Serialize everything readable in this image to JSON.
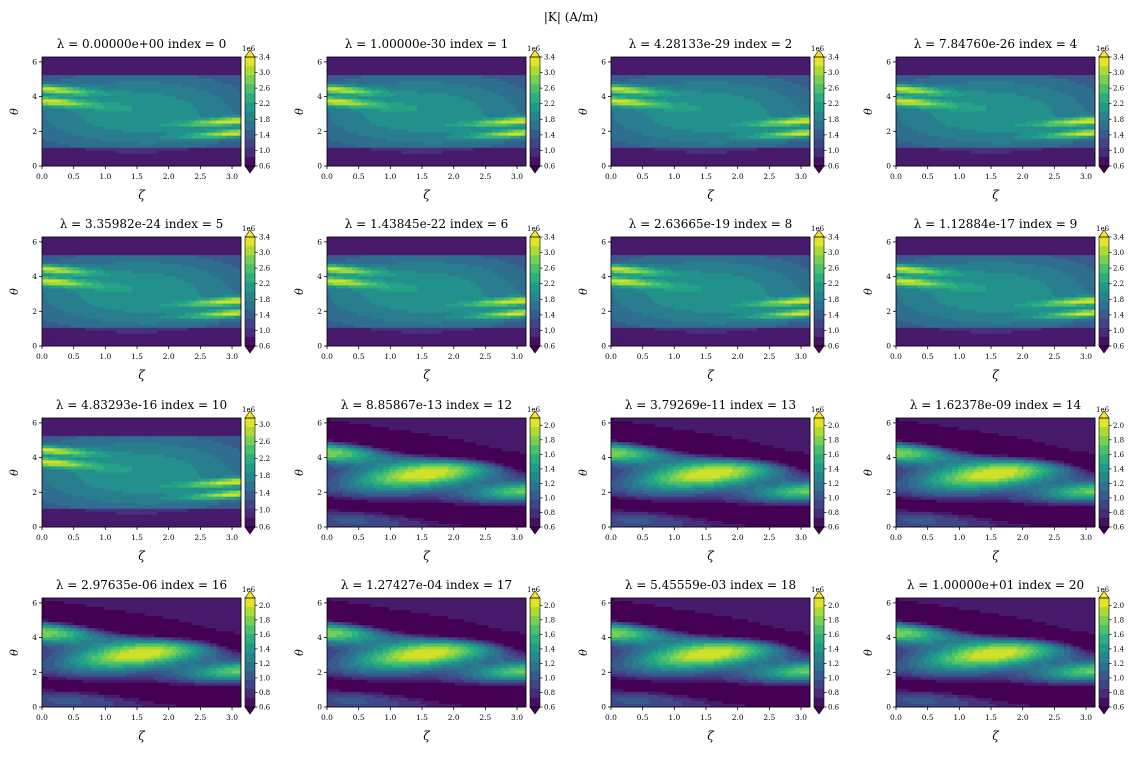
{
  "figure": {
    "title": "|K| (A/m)"
  },
  "colormap": {
    "name": "viridis",
    "stops": [
      "#440154",
      "#482878",
      "#3e4989",
      "#31688e",
      "#26828e",
      "#1f9e89",
      "#35b779",
      "#6ece58",
      "#b5de2b",
      "#fde725"
    ]
  },
  "chart_data": {
    "type": "heatmap",
    "shared": {
      "xlabel": "ζ",
      "ylabel": "θ",
      "xlim": [
        0,
        3.14159
      ],
      "ylim": [
        0,
        6.28319
      ],
      "x_ticks": [
        "0.0",
        "0.5",
        "1.0",
        "1.5",
        "2.0",
        "2.5",
        "3.0"
      ],
      "x_tick_values": [
        0,
        0.5,
        1.0,
        1.5,
        2.0,
        2.5,
        3.0
      ],
      "y_ticks": [
        "0",
        "2",
        "4",
        "6"
      ],
      "y_tick_values": [
        0,
        2,
        4,
        6
      ],
      "colorbar_multiplier": "1e6",
      "colorbar_extend": "both",
      "grid": false
    },
    "colorbar_sets": {
      "A": {
        "levels": [
          0.6,
          1.0,
          1.4,
          1.8,
          2.2,
          2.6,
          3.0,
          3.4
        ],
        "ticks": [
          "0.6",
          "1.0",
          "1.4",
          "1.8",
          "2.2",
          "2.6",
          "3.0",
          "3.4"
        ],
        "tick_values": [
          0.6,
          1.0,
          1.4,
          1.8,
          2.2,
          2.6,
          3.0,
          3.4
        ],
        "range": [
          0.6,
          3.4
        ]
      },
      "B": {
        "ticks": [
          "0.6",
          "1.0",
          "1.4",
          "1.8",
          "2.2",
          "2.6",
          "3.0"
        ],
        "tick_values": [
          0.6,
          1.0,
          1.4,
          1.8,
          2.2,
          2.6,
          3.0
        ],
        "range": [
          0.6,
          3.15
        ]
      },
      "C": {
        "ticks": [
          "0.6",
          "0.8",
          "1.0",
          "1.2",
          "1.4",
          "1.6",
          "1.8",
          "2.0"
        ],
        "tick_values": [
          0.6,
          0.8,
          1.0,
          1.2,
          1.4,
          1.6,
          1.8,
          2.0
        ],
        "range": [
          0.6,
          2.1
        ]
      }
    },
    "panels": [
      {
        "title": "λ =  0.00000e+00 index = 0",
        "colorbar": "A",
        "pattern": "streaks"
      },
      {
        "title": "λ =  1.00000e-30 index = 1",
        "colorbar": "A",
        "pattern": "streaks"
      },
      {
        "title": "λ =  4.28133e-29 index = 2",
        "colorbar": "A",
        "pattern": "streaks"
      },
      {
        "title": "λ =  7.84760e-26 index = 4",
        "colorbar": "A",
        "pattern": "streaks"
      },
      {
        "title": "λ =  3.35982e-24 index = 5",
        "colorbar": "A",
        "pattern": "streaks"
      },
      {
        "title": "λ =  1.43845e-22 index = 6",
        "colorbar": "A",
        "pattern": "streaks"
      },
      {
        "title": "λ =  2.63665e-19 index = 8",
        "colorbar": "A",
        "pattern": "streaks"
      },
      {
        "title": "λ =  1.12884e-17 index = 9",
        "colorbar": "A",
        "pattern": "streaks"
      },
      {
        "title": "λ =  4.83293e-16 index = 10",
        "colorbar": "B",
        "pattern": "streaks"
      },
      {
        "title": "λ =  8.85867e-13 index = 12",
        "colorbar": "C",
        "pattern": "diagonal"
      },
      {
        "title": "λ =  3.79269e-11 index = 13",
        "colorbar": "C",
        "pattern": "diagonal"
      },
      {
        "title": "λ =  1.62378e-09 index = 14",
        "colorbar": "C",
        "pattern": "diagonal"
      },
      {
        "title": "λ =  2.97635e-06 index = 16",
        "colorbar": "C",
        "pattern": "diagonal"
      },
      {
        "title": "λ =  1.27427e-04 index = 17",
        "colorbar": "C",
        "pattern": "diagonal"
      },
      {
        "title": "λ =  5.45559e-03 index = 18",
        "colorbar": "C",
        "pattern": "diagonal"
      },
      {
        "title": "λ =  1.00000e+01 index = 20",
        "colorbar": "C",
        "pattern": "diagonal"
      }
    ]
  }
}
